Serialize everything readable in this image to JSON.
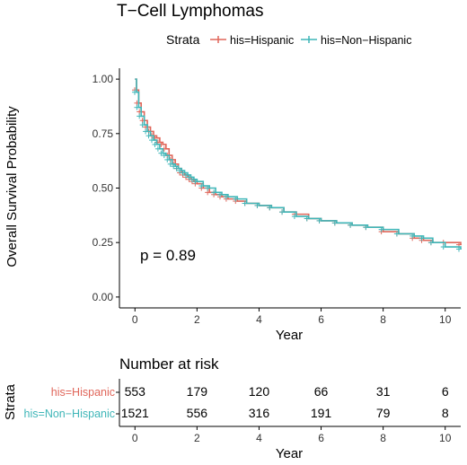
{
  "chart_data": [
    {
      "type": "line",
      "subtype": "kaplan-meier",
      "title": "T−Cell Lymphomas",
      "xlabel": "Year",
      "ylabel": "Overall Survival Probability",
      "xlim": [
        -0.5,
        10.5
      ],
      "ylim": [
        -0.05,
        1.05
      ],
      "x_ticks": [
        0,
        2,
        4,
        6,
        8,
        10
      ],
      "y_ticks": [
        0.0,
        0.25,
        0.5,
        0.75,
        1.0
      ],
      "y_tick_labels": [
        "0.00",
        "0.25",
        "0.50",
        "0.75",
        "1.00"
      ],
      "grid": false,
      "legend": {
        "title": "Strata",
        "position": "top",
        "entries": [
          "his=Hispanic",
          "his=Non−Hispanic"
        ]
      },
      "annotation": "p = 0.89",
      "series": [
        {
          "name": "his=Hispanic",
          "color": "#E0665A",
          "x": [
            0,
            0.05,
            0.12,
            0.2,
            0.3,
            0.4,
            0.5,
            0.6,
            0.7,
            0.8,
            0.9,
            1.0,
            1.1,
            1.2,
            1.3,
            1.4,
            1.5,
            1.6,
            1.7,
            1.8,
            1.9,
            2.0,
            2.2,
            2.4,
            2.6,
            2.8,
            3.0,
            3.3,
            3.6,
            4.0,
            4.4,
            4.8,
            5.2,
            5.6,
            6.0,
            6.5,
            7.0,
            7.5,
            8.0,
            8.5,
            9.0,
            9.3,
            9.6,
            10.0,
            10.5
          ],
          "y": [
            1.0,
            0.95,
            0.89,
            0.85,
            0.81,
            0.78,
            0.76,
            0.74,
            0.73,
            0.71,
            0.7,
            0.68,
            0.65,
            0.63,
            0.61,
            0.59,
            0.57,
            0.56,
            0.55,
            0.54,
            0.53,
            0.52,
            0.5,
            0.48,
            0.47,
            0.46,
            0.45,
            0.44,
            0.43,
            0.42,
            0.41,
            0.39,
            0.38,
            0.36,
            0.35,
            0.34,
            0.33,
            0.32,
            0.3,
            0.29,
            0.27,
            0.26,
            0.25,
            0.25,
            0.24
          ]
        },
        {
          "name": "his=Non−Hispanic",
          "color": "#3FB6B8",
          "x": [
            0,
            0.05,
            0.12,
            0.2,
            0.3,
            0.4,
            0.5,
            0.6,
            0.7,
            0.8,
            0.9,
            1.0,
            1.1,
            1.2,
            1.3,
            1.4,
            1.5,
            1.6,
            1.7,
            1.8,
            1.9,
            2.0,
            2.2,
            2.4,
            2.6,
            2.8,
            3.0,
            3.3,
            3.6,
            4.0,
            4.4,
            4.8,
            5.2,
            5.6,
            6.0,
            6.5,
            7.0,
            7.5,
            8.0,
            8.5,
            9.0,
            9.3,
            9.6,
            10.0,
            10.5
          ],
          "y": [
            1.0,
            0.94,
            0.87,
            0.83,
            0.79,
            0.76,
            0.74,
            0.72,
            0.7,
            0.68,
            0.66,
            0.65,
            0.63,
            0.61,
            0.6,
            0.59,
            0.58,
            0.57,
            0.56,
            0.55,
            0.54,
            0.53,
            0.51,
            0.5,
            0.48,
            0.47,
            0.46,
            0.45,
            0.43,
            0.42,
            0.41,
            0.39,
            0.37,
            0.36,
            0.35,
            0.34,
            0.33,
            0.32,
            0.31,
            0.29,
            0.28,
            0.27,
            0.25,
            0.23,
            0.22
          ]
        }
      ]
    },
    {
      "type": "table",
      "title": "Number at risk",
      "xlabel": "Year",
      "ylabel": "Strata",
      "x_ticks": [
        0,
        2,
        4,
        6,
        8,
        10
      ],
      "rows": [
        {
          "name": "his=Hispanic",
          "color": "#E0665A",
          "values": [
            553,
            179,
            120,
            66,
            31,
            6
          ]
        },
        {
          "name": "his=Non−Hispanic",
          "color": "#3FB6B8",
          "values": [
            1521,
            556,
            316,
            191,
            79,
            8
          ]
        }
      ]
    }
  ]
}
